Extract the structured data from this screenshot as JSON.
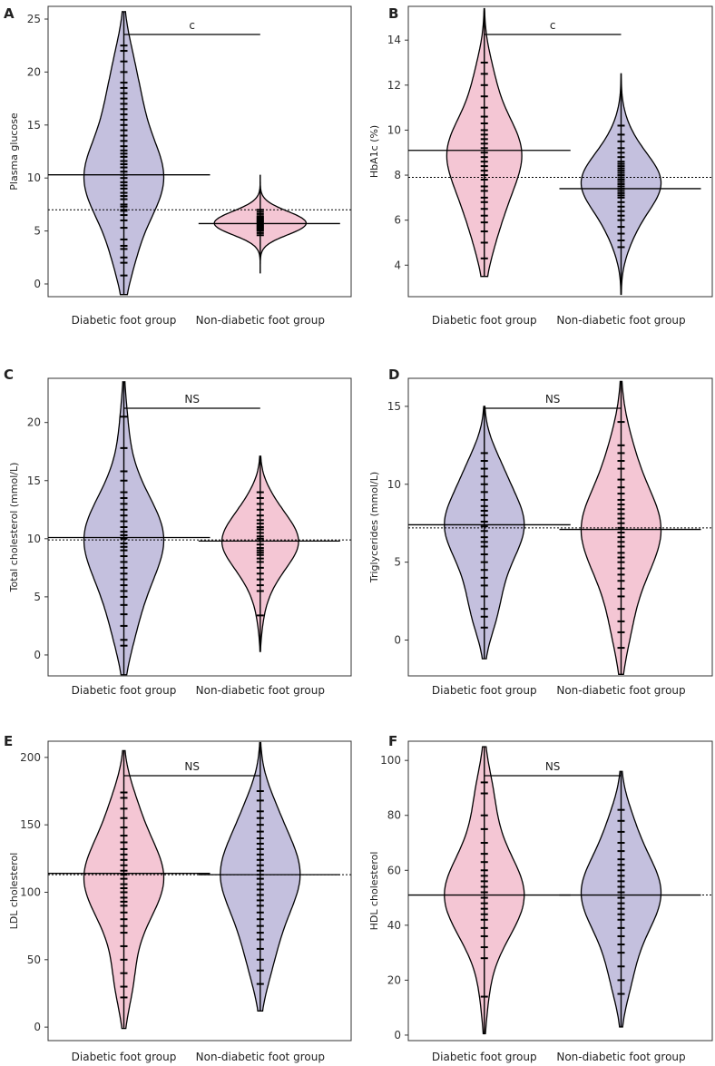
{
  "figure": {
    "colors": {
      "pink": "#f4c6d4",
      "purple": "#c4c0de",
      "stroke": "#000000"
    },
    "category_labels": [
      "Diabetic foot group",
      "Non-diabetic foot group"
    ]
  },
  "chart_data": [
    {
      "panel": "A",
      "type": "violin",
      "ylabel": "Plasma glucose",
      "yticks": [
        0,
        5,
        10,
        15,
        20,
        25
      ],
      "ylim": [
        -1.2,
        26.2
      ],
      "reference_line": 7.0,
      "significance": "c",
      "groups": [
        {
          "name": "Diabetic foot group",
          "fill": "purple",
          "mean": 10.3,
          "range": [
            -1.0,
            25.7
          ],
          "halfwidth": 1.0,
          "points": [
            0.8,
            2.0,
            2.5,
            3.3,
            3.6,
            4.2,
            5.3,
            6.0,
            6.5,
            6.9,
            7.0,
            7.3,
            7.5,
            8.0,
            8.3,
            8.6,
            9.0,
            9.3,
            9.6,
            10.0,
            10.3,
            10.6,
            11.0,
            11.3,
            11.6,
            12.0,
            12.3,
            12.6,
            13.0,
            13.5,
            14.0,
            14.5,
            15.0,
            15.5,
            16.0,
            16.5,
            17.0,
            17.5,
            18.0,
            18.5,
            19.0,
            20.0,
            21.0,
            22.0,
            22.5
          ]
        },
        {
          "name": "Non-diabetic foot group",
          "fill": "pink",
          "mean": 5.7,
          "range": [
            1.0,
            10.3
          ],
          "halfwidth": 1.15,
          "points": [
            4.6,
            4.8,
            5.0,
            5.1,
            5.2,
            5.3,
            5.4,
            5.5,
            5.6,
            5.7,
            5.8,
            5.9,
            6.0,
            6.1,
            6.2,
            6.3,
            6.4,
            6.6,
            6.8,
            7.0
          ]
        }
      ]
    },
    {
      "panel": "B",
      "type": "violin",
      "ylabel": "HbA1c (%)",
      "yticks": [
        4,
        6,
        8,
        10,
        12,
        14
      ],
      "ylim": [
        2.6,
        15.5
      ],
      "reference_line": 7.9,
      "significance": "c",
      "groups": [
        {
          "name": "Diabetic foot group",
          "fill": "pink",
          "mean": 9.1,
          "range": [
            3.5,
            15.4
          ],
          "halfwidth": 0.94,
          "points": [
            4.3,
            5.0,
            5.5,
            5.9,
            6.2,
            6.5,
            6.8,
            7.0,
            7.3,
            7.5,
            7.8,
            8.0,
            8.2,
            8.4,
            8.6,
            8.8,
            9.0,
            9.2,
            9.4,
            9.6,
            9.8,
            10.0,
            10.3,
            10.6,
            11.0,
            11.5,
            12.0,
            12.5,
            13.0
          ]
        },
        {
          "name": "Non-diabetic foot group",
          "fill": "purple",
          "mean": 7.4,
          "range": [
            2.7,
            12.5
          ],
          "halfwidth": 1.0,
          "points": [
            4.8,
            5.1,
            5.4,
            5.7,
            6.0,
            6.2,
            6.4,
            6.6,
            6.8,
            7.0,
            7.1,
            7.2,
            7.3,
            7.4,
            7.5,
            7.6,
            7.7,
            7.8,
            7.9,
            8.0,
            8.1,
            8.2,
            8.3,
            8.4,
            8.5,
            8.6,
            8.8,
            9.0,
            9.2,
            9.5,
            9.8,
            10.2
          ]
        }
      ]
    },
    {
      "panel": "C",
      "type": "violin",
      "ylabel": "Total cholesterol (mmol/L)",
      "yticks": [
        0,
        5,
        10,
        15,
        20
      ],
      "ylim": [
        -1.8,
        23.8
      ],
      "reference_line": 9.9,
      "significance": "NS",
      "groups": [
        {
          "name": "Diabetic foot group",
          "fill": "purple",
          "mean": 10.1,
          "range": [
            -1.7,
            23.5
          ],
          "halfwidth": 1.0,
          "points": [
            0.8,
            1.3,
            2.5,
            3.5,
            4.3,
            5.0,
            5.5,
            6.0,
            6.5,
            7.0,
            7.5,
            8.0,
            8.5,
            9.0,
            9.3,
            9.6,
            10.0,
            10.3,
            10.6,
            11.0,
            11.5,
            12.0,
            12.5,
            13.0,
            13.5,
            14.0,
            15.0,
            15.8,
            17.8,
            20.5
          ]
        },
        {
          "name": "Non-diabetic foot group",
          "fill": "pink",
          "mean": 9.8,
          "range": [
            0.3,
            17.1
          ],
          "halfwidth": 0.96,
          "points": [
            3.4,
            5.5,
            6.0,
            6.5,
            7.0,
            7.5,
            8.0,
            8.3,
            8.6,
            8.8,
            9.0,
            9.2,
            9.5,
            9.8,
            10.0,
            10.2,
            10.5,
            10.8,
            11.0,
            11.3,
            11.6,
            12.0,
            12.5,
            13.0,
            13.5,
            14.0
          ]
        }
      ]
    },
    {
      "panel": "D",
      "type": "violin",
      "ylabel": "Triglycerides (mmol/L)",
      "yticks": [
        0,
        5,
        10,
        15
      ],
      "ylim": [
        -2.3,
        16.8
      ],
      "reference_line": 7.2,
      "significance": "NS",
      "groups": [
        {
          "name": "Diabetic foot group",
          "fill": "purple",
          "mean": 7.4,
          "range": [
            -1.2,
            15.0
          ],
          "halfwidth": 1.0,
          "points": [
            0.8,
            1.5,
            2.0,
            2.8,
            3.5,
            4.0,
            4.5,
            5.0,
            5.5,
            6.0,
            6.3,
            6.6,
            7.0,
            7.3,
            7.6,
            8.0,
            8.3,
            8.6,
            9.0,
            9.5,
            10.0,
            10.5,
            11.0,
            11.5,
            12.0
          ]
        },
        {
          "name": "Non-diabetic foot group",
          "fill": "pink",
          "mean": 7.1,
          "range": [
            -2.2,
            16.6
          ],
          "halfwidth": 1.0,
          "points": [
            -0.5,
            0.5,
            1.2,
            2.0,
            2.8,
            3.3,
            3.8,
            4.2,
            4.6,
            5.0,
            5.3,
            5.6,
            6.0,
            6.3,
            6.6,
            6.9,
            7.2,
            7.5,
            7.8,
            8.1,
            8.4,
            8.7,
            9.0,
            9.4,
            9.8,
            10.3,
            11.0,
            11.5,
            12.0,
            12.5,
            14.0
          ]
        }
      ]
    },
    {
      "panel": "E",
      "type": "violin",
      "ylabel": "LDL cholesterol",
      "yticks": [
        0,
        50,
        100,
        150,
        200
      ],
      "ylim": [
        -10,
        212
      ],
      "reference_line": 113,
      "significance": "NS",
      "groups": [
        {
          "name": "Diabetic foot group",
          "fill": "pink",
          "mean": 114,
          "range": [
            -1,
            205
          ],
          "halfwidth": 1.0,
          "points": [
            22,
            30,
            40,
            50,
            60,
            70,
            75,
            80,
            85,
            90,
            93,
            96,
            100,
            103,
            106,
            110,
            113,
            116,
            120,
            124,
            128,
            132,
            137,
            142,
            148,
            155,
            162,
            170,
            174
          ]
        },
        {
          "name": "Non-diabetic foot group",
          "fill": "purple",
          "mean": 113,
          "range": [
            12,
            211
          ],
          "halfwidth": 1.0,
          "points": [
            32,
            42,
            50,
            58,
            65,
            70,
            75,
            80,
            85,
            90,
            94,
            98,
            102,
            106,
            110,
            113,
            116,
            120,
            124,
            128,
            132,
            136,
            140,
            145,
            150,
            155,
            160,
            168,
            175
          ]
        }
      ]
    },
    {
      "panel": "F",
      "type": "violin",
      "ylabel": "HDL cholesterol",
      "yticks": [
        0,
        20,
        40,
        60,
        80,
        100
      ],
      "ylim": [
        -2,
        107
      ],
      "reference_line": 51,
      "significance": "NS",
      "groups": [
        {
          "name": "Diabetic foot group",
          "fill": "pink",
          "mean": 51,
          "range": [
            0.5,
            105
          ],
          "halfwidth": 1.0,
          "points": [
            14,
            28,
            32,
            36,
            39,
            42,
            44,
            46,
            48,
            50,
            52,
            54,
            56,
            58,
            60,
            63,
            66,
            70,
            75,
            80,
            88,
            92
          ]
        },
        {
          "name": "Non-diabetic foot group",
          "fill": "purple",
          "mean": 51,
          "range": [
            3,
            96
          ],
          "halfwidth": 1.0,
          "points": [
            15,
            20,
            25,
            30,
            33,
            36,
            39,
            42,
            44,
            46,
            48,
            50,
            52,
            54,
            56,
            58,
            60,
            62,
            64,
            67,
            70,
            74,
            78,
            82
          ]
        }
      ]
    }
  ]
}
